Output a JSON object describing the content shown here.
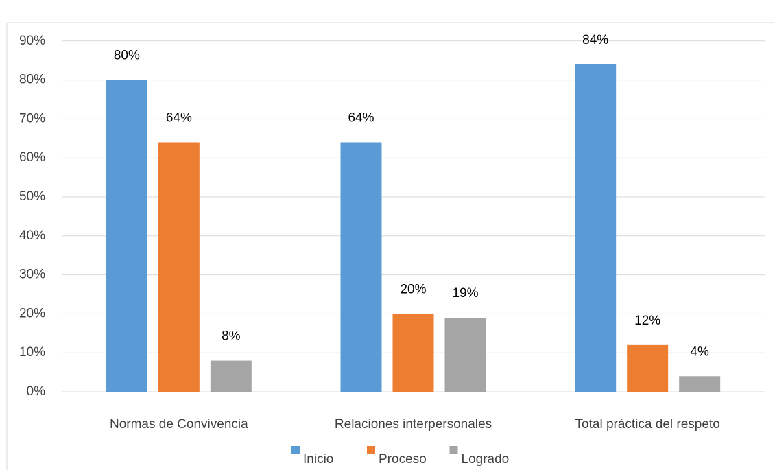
{
  "chart_data": {
    "type": "bar",
    "categories": [
      "Normas de Convivencia",
      "Relaciones interpersonales",
      "Total práctica del respeto"
    ],
    "series": [
      {
        "name": "Inicio",
        "color": "#5B9BD5",
        "values": [
          80,
          64,
          84
        ],
        "labels": [
          "80%",
          "64%",
          "84%"
        ]
      },
      {
        "name": "Proceso",
        "color": "#ED7D31",
        "values": [
          64,
          20,
          12
        ],
        "labels": [
          "64%",
          "20%",
          "12%"
        ]
      },
      {
        "name": "Logrado",
        "color": "#A5A5A5",
        "values": [
          8,
          19,
          4
        ],
        "labels": [
          "8%",
          "19%",
          "4%"
        ]
      }
    ],
    "yticks": [
      "0%",
      "10%",
      "20%",
      "30%",
      "40%",
      "50%",
      "60%",
      "70%",
      "80%",
      "90%"
    ],
    "ylim": [
      0,
      90
    ],
    "grid": true,
    "legend_position": "bottom",
    "title": "",
    "xlabel": "",
    "ylabel": ""
  }
}
